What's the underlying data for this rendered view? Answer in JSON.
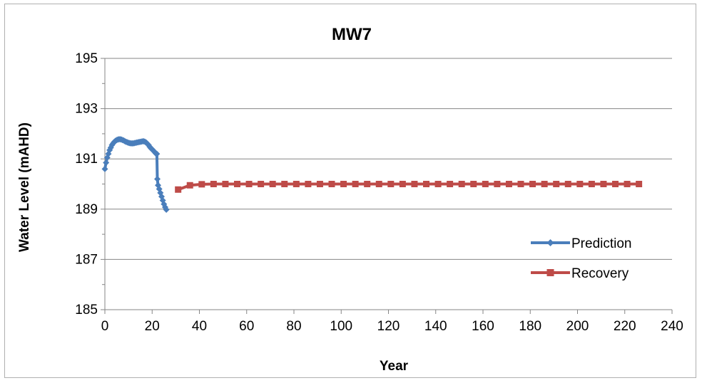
{
  "chart_data": {
    "type": "line",
    "title": "MW7",
    "xlabel": "Year",
    "ylabel": "Water Level (mAHD)",
    "xlim": [
      0,
      240
    ],
    "ylim": [
      185,
      195
    ],
    "x_ticks": [
      0,
      20,
      40,
      60,
      80,
      100,
      120,
      140,
      160,
      180,
      200,
      220,
      240
    ],
    "y_ticks": [
      185,
      187,
      189,
      191,
      193,
      195
    ],
    "grid": "horizontal major",
    "legend_position": "bottom-right",
    "series": [
      {
        "name": "Prediction",
        "color": "#4a7ebb",
        "marker": "diamond",
        "x": [
          0,
          0.5,
          1,
          1.5,
          2,
          2.5,
          3,
          3.5,
          4,
          4.5,
          5,
          5.5,
          6,
          6.5,
          7,
          7.5,
          8,
          8.5,
          9,
          9.5,
          10,
          10.5,
          11,
          11.5,
          12,
          12.5,
          13,
          13.5,
          14,
          14.5,
          15,
          15.5,
          16,
          16.5,
          17,
          17.5,
          18,
          18.5,
          19,
          19.5,
          20,
          20.5,
          21,
          21.5,
          22,
          22.2,
          22.5,
          23,
          23.5,
          24,
          24.5,
          25,
          25.5,
          26
        ],
        "y": [
          190.6,
          190.85,
          191.05,
          191.2,
          191.35,
          191.45,
          191.55,
          191.62,
          191.68,
          191.72,
          191.75,
          191.77,
          191.78,
          191.78,
          191.77,
          191.75,
          191.73,
          191.7,
          191.68,
          191.66,
          191.64,
          191.63,
          191.62,
          191.62,
          191.62,
          191.63,
          191.64,
          191.65,
          191.66,
          191.67,
          191.68,
          191.69,
          191.7,
          191.7,
          191.68,
          191.65,
          191.6,
          191.55,
          191.48,
          191.42,
          191.38,
          191.33,
          191.28,
          191.22,
          191.2,
          190.2,
          189.95,
          189.8,
          189.65,
          189.5,
          189.35,
          189.2,
          189.08,
          188.98
        ]
      },
      {
        "name": "Recovery",
        "color": "#be4b48",
        "marker": "square",
        "x": [
          31,
          36,
          41,
          46,
          51,
          56,
          61,
          66,
          71,
          76,
          81,
          86,
          91,
          96,
          101,
          106,
          111,
          116,
          121,
          126,
          131,
          136,
          141,
          146,
          151,
          156,
          161,
          166,
          171,
          176,
          181,
          186,
          191,
          196,
          201,
          206,
          211,
          216,
          221,
          226
        ],
        "y": [
          189.78,
          189.95,
          189.99,
          190.0,
          190.0,
          190.0,
          190.0,
          190.0,
          190.0,
          190.0,
          190.0,
          190.0,
          190.0,
          190.0,
          190.0,
          190.0,
          190.0,
          190.0,
          190.0,
          190.0,
          190.0,
          190.0,
          190.0,
          190.0,
          190.0,
          190.0,
          190.0,
          190.0,
          190.0,
          190.0,
          190.0,
          190.0,
          190.0,
          190.0,
          190.0,
          190.0,
          190.0,
          190.0,
          190.0,
          190.0
        ]
      }
    ]
  }
}
